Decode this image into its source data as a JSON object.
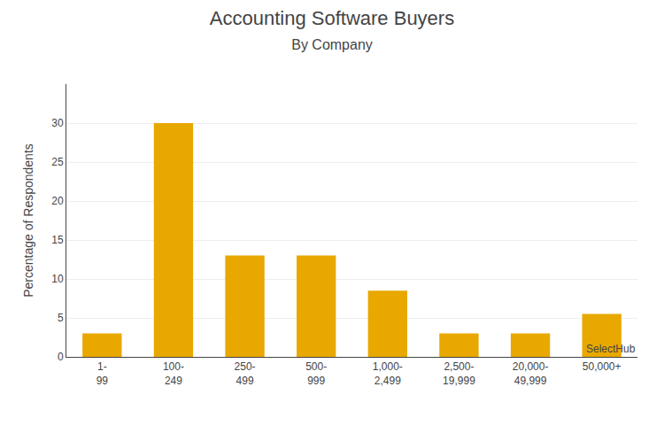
{
  "chart_data": {
    "type": "bar",
    "title": "Accounting Software Buyers",
    "subtitle": "By Company",
    "categories": [
      "1-\n99",
      "100-\n249",
      "250-\n499",
      "500-\n999",
      "1,000-\n2,499",
      "2,500-\n19,999",
      "20,000-\n49,999",
      "50,000+"
    ],
    "values": [
      3,
      30,
      13,
      13,
      8.5,
      3,
      3,
      5.5
    ],
    "color": "#E8A800",
    "ylabel": "Percentage of Respondents",
    "ylim": [
      0,
      35
    ],
    "yticks": [
      0,
      5,
      10,
      15,
      20,
      25,
      30
    ],
    "grid": true,
    "annotations": [
      "SelectHub"
    ]
  }
}
